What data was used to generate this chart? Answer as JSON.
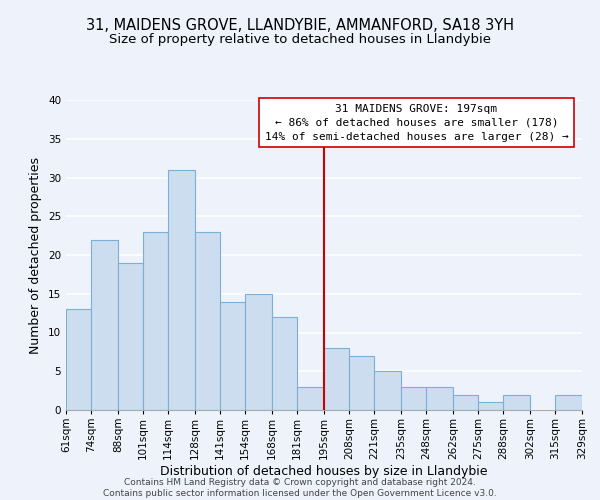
{
  "title": "31, MAIDENS GROVE, LLANDYBIE, AMMANFORD, SA18 3YH",
  "subtitle": "Size of property relative to detached houses in Llandybie",
  "xlabel": "Distribution of detached houses by size in Llandybie",
  "ylabel": "Number of detached properties",
  "bin_edges": [
    61,
    74,
    88,
    101,
    114,
    128,
    141,
    154,
    168,
    181,
    195,
    208,
    221,
    235,
    248,
    262,
    275,
    288,
    302,
    315,
    329
  ],
  "bar_heights": [
    13,
    22,
    19,
    23,
    31,
    23,
    14,
    15,
    12,
    3,
    8,
    7,
    5,
    3,
    3,
    2,
    1,
    2,
    0,
    2
  ],
  "bar_color": "#ccddf0",
  "bar_edge_color": "#7bafd4",
  "vline_x": 195,
  "vline_color": "#cc0000",
  "ylim": [
    0,
    40
  ],
  "annotation_line1": "31 MAIDENS GROVE: 197sqm",
  "annotation_line2": "← 86% of detached houses are smaller (178)",
  "annotation_line3": "14% of semi-detached houses are larger (28) →",
  "annotation_box_color": "#ffffff",
  "annotation_box_edge_color": "#cc0000",
  "footer_text": "Contains HM Land Registry data © Crown copyright and database right 2024.\nContains public sector information licensed under the Open Government Licence v3.0.",
  "background_color": "#edf2fb",
  "grid_color": "#ffffff",
  "tick_labels": [
    "61sqm",
    "74sqm",
    "88sqm",
    "101sqm",
    "114sqm",
    "128sqm",
    "141sqm",
    "154sqm",
    "168sqm",
    "181sqm",
    "195sqm",
    "208sqm",
    "221sqm",
    "235sqm",
    "248sqm",
    "262sqm",
    "275sqm",
    "288sqm",
    "302sqm",
    "315sqm",
    "329sqm"
  ],
  "title_fontsize": 10.5,
  "subtitle_fontsize": 9.5,
  "label_fontsize": 9,
  "tick_fontsize": 7.5,
  "ann_fontsize": 8,
  "footer_fontsize": 6.5,
  "yticks": [
    0,
    5,
    10,
    15,
    20,
    25,
    30,
    35,
    40
  ]
}
